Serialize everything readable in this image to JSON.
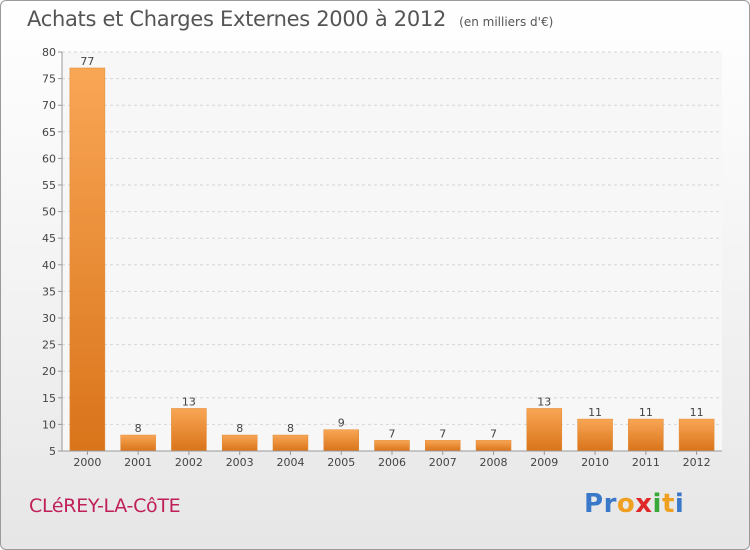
{
  "header": {
    "title": "Achats et Charges Externes 2000 à 2012",
    "subtitle": "(en milliers d'€)"
  },
  "footer": {
    "commune": "CLéREY-LA-CôTE",
    "logo_letters": [
      "P",
      "r",
      "o",
      "x",
      "i",
      "t",
      "i"
    ],
    "logo_colors": [
      "#3a78c9",
      "#3a78c9",
      "#f0a020",
      "#e02828",
      "#38a838",
      "#f0a020",
      "#3a78c9"
    ]
  },
  "chart_data": {
    "type": "bar",
    "title": "Achats et Charges Externes 2000 à 2012",
    "subtitle": "(en milliers d'€)",
    "categories": [
      "2000",
      "2001",
      "2002",
      "2003",
      "2004",
      "2005",
      "2006",
      "2007",
      "2008",
      "2009",
      "2010",
      "2011",
      "2012"
    ],
    "values": [
      77,
      8,
      13,
      8,
      8,
      9,
      7,
      7,
      7,
      13,
      11,
      11,
      11
    ],
    "data_labels": [
      "77",
      "8",
      "13",
      "8",
      "8",
      "9",
      "7",
      "7",
      "7",
      "13",
      "11",
      "11",
      "11"
    ],
    "ylim": [
      5,
      80
    ],
    "yticks": [
      5,
      10,
      15,
      20,
      25,
      30,
      35,
      40,
      45,
      50,
      55,
      60,
      65,
      70,
      75,
      80
    ],
    "grid": true,
    "bar_color_top": "#f9a655",
    "bar_color_bottom": "#d9741a"
  }
}
